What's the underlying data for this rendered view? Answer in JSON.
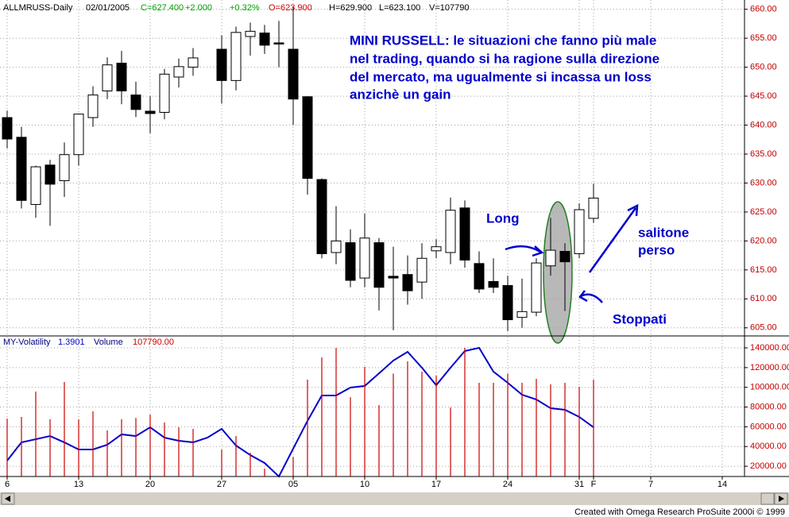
{
  "chart_data": [
    {
      "type": "candlestick",
      "header": [
        {
          "text": "ALLMRUSS-Daily",
          "color": "#000000"
        },
        {
          "text": "02/01/2005",
          "color": "#000000"
        },
        {
          "text": "C=627.400",
          "color": "#00a000"
        },
        {
          "text": "+2.000",
          "color": "#00a000"
        },
        {
          "text": "+0.32%",
          "color": "#00a000"
        },
        {
          "text": "O=623.900",
          "color": "#d00000"
        },
        {
          "text": "H=629.900",
          "color": "#000000"
        },
        {
          "text": "L=623.100",
          "color": "#000000"
        },
        {
          "text": "V=107790",
          "color": "#000000"
        }
      ],
      "annotations": [
        {
          "text": "MINI RUSSELL: le situazioni che fanno più male"
        },
        {
          "text": "nel trading, quando si ha ragione sulla direzione"
        },
        {
          "text": "del mercato, ma ugualmente si incassa un loss"
        },
        {
          "text": "anzichè un gain"
        },
        {
          "text": "Long"
        },
        {
          "text": "salitone"
        },
        {
          "text": "perso"
        },
        {
          "text": "Stoppati"
        }
      ],
      "categories": [
        "6",
        null,
        null,
        null,
        null,
        "13",
        null,
        null,
        null,
        null,
        "20",
        null,
        null,
        null,
        null,
        "27",
        null,
        null,
        null,
        null,
        "05",
        null,
        null,
        null,
        null,
        "10",
        null,
        null,
        null,
        null,
        "17",
        null,
        null,
        null,
        null,
        "24",
        null,
        null,
        null,
        null,
        "31",
        "F",
        null,
        null,
        null,
        "7",
        null,
        null,
        null,
        null,
        "14",
        null
      ],
      "open": [
        641.3,
        637.9,
        626.3,
        633.1,
        630.4,
        634.9,
        641.3,
        645.9,
        650.7,
        645.2,
        642.4,
        642.2,
        648.3,
        650,
        null,
        653.1,
        647.7,
        655.3,
        655.9,
        654.2,
        653.1,
        644.9,
        630.6,
        618,
        619.7,
        613.6,
        619.7,
        613.9,
        614.2,
        612.9,
        618.3,
        618,
        625.7,
        616.1,
        613,
        612.3,
        606.8,
        607.7,
        615.7,
        618.2,
        617.8,
        623.9,
        null,
        null,
        null,
        null,
        null,
        null,
        null,
        null,
        null,
        null
      ],
      "high": [
        642.5,
        639.7,
        633,
        634,
        637,
        642,
        646.7,
        651.7,
        652.8,
        647.5,
        645,
        649.7,
        651.5,
        653.3,
        null,
        655.5,
        657,
        657.7,
        657.3,
        658,
        660.5,
        645,
        630.8,
        626,
        622,
        624.7,
        620.5,
        619,
        617.5,
        619.6,
        620.3,
        627.5,
        627,
        618.2,
        617,
        614,
        613.5,
        617,
        624,
        619.6,
        626.5,
        629.9,
        null,
        null,
        null,
        null,
        null,
        null,
        null,
        null,
        null,
        null
      ],
      "low": [
        636,
        625.6,
        624,
        622.6,
        627.6,
        633,
        639.7,
        644.5,
        643.6,
        641.4,
        638.6,
        641,
        646.5,
        648.5,
        null,
        643.7,
        646,
        652,
        652.3,
        650,
        640,
        628,
        617,
        616,
        612,
        612,
        608,
        604.6,
        609,
        610,
        617,
        616,
        615.4,
        611,
        611,
        604.4,
        605,
        607,
        614,
        607.9,
        617,
        623.1,
        null,
        null,
        null,
        null,
        null,
        null,
        null,
        null,
        null,
        null
      ],
      "close": [
        637.6,
        627,
        632.8,
        629.8,
        634.9,
        641.9,
        645.2,
        650.4,
        645.9,
        642.7,
        642,
        648.8,
        650.1,
        651.6,
        null,
        647.7,
        656,
        656.2,
        653.8,
        654,
        644.5,
        630.8,
        617.8,
        620,
        613.2,
        620.5,
        612,
        613.6,
        611.4,
        617,
        619,
        625.3,
        616.7,
        611.7,
        612,
        606.4,
        607.8,
        616.2,
        618.4,
        616.4,
        625.4,
        627.4,
        null,
        null,
        null,
        null,
        null,
        null,
        null,
        null,
        null,
        null
      ],
      "up_color": "#ffffff",
      "down_color": "#000000",
      "ylim": [
        603.6,
        661.6
      ],
      "yticks": [
        {
          "value": 605,
          "label": "605.00"
        },
        {
          "value": 610,
          "label": "610.00"
        },
        {
          "value": 615,
          "label": "615.00"
        },
        {
          "value": 620,
          "label": "620.00"
        },
        {
          "value": 625,
          "label": "625.00"
        },
        {
          "value": 630,
          "label": "630.00"
        },
        {
          "value": 635,
          "label": "635.00"
        },
        {
          "value": 640,
          "label": "640.00"
        },
        {
          "value": 645,
          "label": "645.00"
        },
        {
          "value": 650,
          "label": "650.00"
        },
        {
          "value": 655,
          "label": "655.00"
        },
        {
          "value": 660,
          "label": "660.00"
        }
      ],
      "grid": true
    },
    {
      "type": "bar",
      "series": [
        {
          "name": "MY-Volatility",
          "last": "1.3901",
          "type": "line",
          "color": "#0000cc",
          "values": [
            25700,
            44200,
            47400,
            50600,
            44200,
            37000,
            37000,
            41800,
            52300,
            50600,
            59500,
            49000,
            45800,
            44200,
            49000,
            57900,
            41000,
            31300,
            23300,
            9600,
            37800,
            66000,
            91700,
            91700,
            99800,
            101400,
            114200,
            127100,
            136000,
            119900,
            102200,
            119900,
            136800,
            140000,
            115900,
            104600,
            92500,
            87700,
            78800,
            77200,
            70000,
            59500,
            null,
            null,
            null,
            null,
            null,
            null,
            null,
            null,
            null,
            null
          ]
        },
        {
          "name": "Volume",
          "last": "107790.00",
          "type": "bar",
          "color": "#cc0000",
          "values": [
            68300,
            70000,
            95700,
            67600,
            105400,
            67600,
            75600,
            56300,
            67600,
            69000,
            72400,
            64300,
            59500,
            57900,
            null,
            37000,
            50600,
            33700,
            17600,
            9600,
            29600,
            107800,
            130300,
            140000,
            90000,
            120700,
            82000,
            114000,
            126300,
            115900,
            111800,
            79600,
            140000,
            104600,
            104600,
            114000,
            104600,
            108600,
            103000,
            104600,
            100600,
            107790,
            null,
            null,
            null,
            null,
            null,
            null,
            null,
            null,
            null,
            null
          ]
        }
      ],
      "ylim": [
        9600,
        151300
      ],
      "yticks": [
        {
          "value": 20000,
          "label": "20000.00"
        },
        {
          "value": 40000,
          "label": "40000.00"
        },
        {
          "value": 60000,
          "label": "60000.00"
        },
        {
          "value": 80000,
          "label": "80000.00"
        },
        {
          "value": 100000,
          "label": "100000.00"
        },
        {
          "value": 120000,
          "label": "120000.00"
        },
        {
          "value": 140000,
          "label": "140000.00"
        }
      ],
      "grid": true
    }
  ],
  "footer": "Created with Omega Research ProSuite 2000i © 1999"
}
